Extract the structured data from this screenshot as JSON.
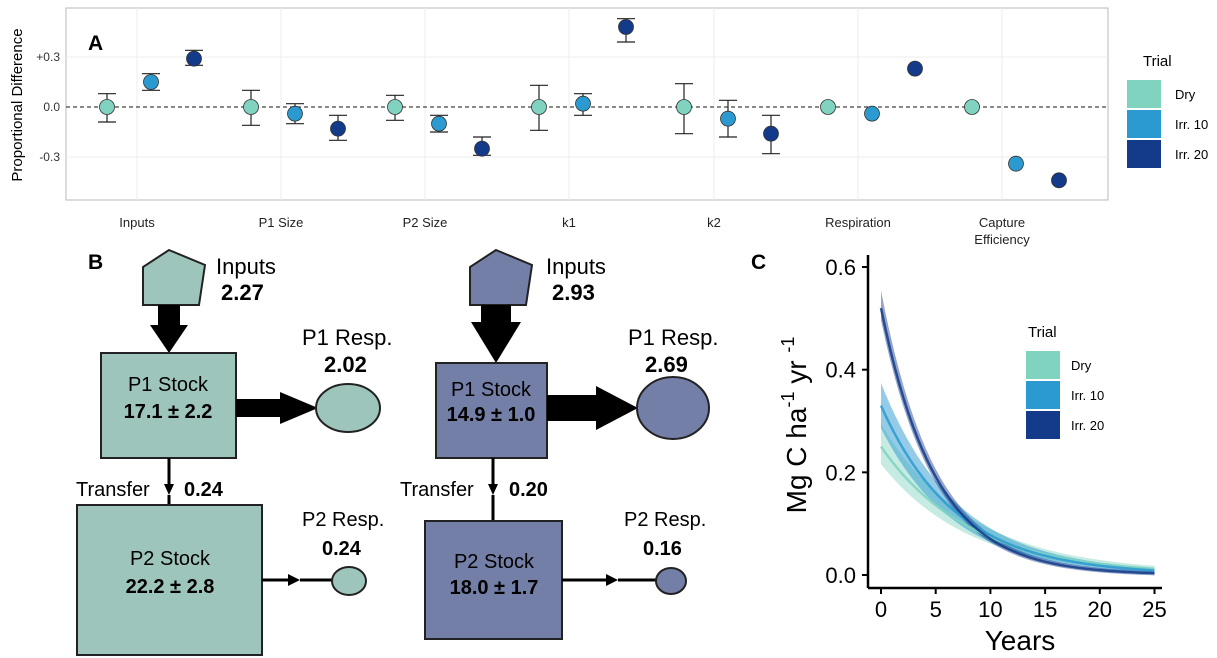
{
  "panels": {
    "A": "A",
    "B": "B",
    "C": "C"
  },
  "colors": {
    "dry": "#7fd3bf",
    "irr10": "#2a9ad0",
    "irr20": "#143a8a",
    "modelDry": "#9ec5bc",
    "modelIrr20": "#747fa8"
  },
  "chart_data": [
    {
      "type": "scatter",
      "panel": "A",
      "ylabel": "Proportional Difference",
      "categories": [
        "Inputs",
        "P1 Size",
        "P2 Size",
        "k1",
        "k2",
        "Respiration",
        "Capture Efficiency"
      ],
      "yticks": [
        {
          "value": 0.3,
          "label": "+0.3"
        },
        {
          "value": 0.0,
          "label": "0.0"
        },
        {
          "value": -0.3,
          "label": "-0.3"
        }
      ],
      "ylim": [
        -0.6,
        0.6
      ],
      "reference_line": 0,
      "legend": {
        "title": "Trial",
        "position": "right",
        "entries": [
          "Dry",
          "Irr. 10",
          "Irr. 20"
        ]
      },
      "series": [
        {
          "name": "Dry",
          "color": "#7fd3bf",
          "values": [
            0.0,
            0.0,
            0.0,
            0.0,
            0.0,
            0.0,
            0.0
          ],
          "err_low": [
            -0.09,
            -0.11,
            -0.08,
            -0.14,
            -0.16,
            null,
            null
          ],
          "err_high": [
            0.08,
            0.1,
            0.07,
            0.13,
            0.14,
            null,
            null
          ]
        },
        {
          "name": "Irr. 10",
          "color": "#2a9ad0",
          "values": [
            0.15,
            -0.04,
            -0.1,
            0.02,
            -0.07,
            -0.04,
            -0.34
          ],
          "err_low": [
            0.1,
            -0.1,
            -0.15,
            -0.05,
            -0.18,
            null,
            null
          ],
          "err_high": [
            0.2,
            0.02,
            -0.05,
            0.08,
            0.04,
            null,
            null
          ]
        },
        {
          "name": "Irr. 20",
          "color": "#143a8a",
          "values": [
            0.29,
            -0.13,
            -0.25,
            0.48,
            -0.16,
            0.23,
            -0.44
          ],
          "err_low": [
            0.25,
            -0.2,
            -0.29,
            0.39,
            -0.28,
            null,
            null
          ],
          "err_high": [
            0.34,
            -0.05,
            -0.18,
            0.53,
            -0.05,
            null,
            null
          ]
        }
      ]
    },
    {
      "type": "line",
      "panel": "C",
      "xlabel": "Years",
      "ylabel_parts": [
        "Mg C ha",
        "-1",
        " yr ",
        "-1"
      ],
      "xticks": [
        0,
        5,
        10,
        15,
        20,
        25
      ],
      "yticks": [
        0.0,
        0.2,
        0.4,
        0.6
      ],
      "ytick_labels": [
        "0.0",
        "0.2",
        "0.4",
        "0.6"
      ],
      "xlim": [
        -1,
        25.5
      ],
      "ylim": [
        -0.02,
        0.63
      ],
      "legend": {
        "title": "Trial",
        "position": "top-right",
        "entries": [
          "Dry",
          "Irr. 10",
          "Irr. 20"
        ]
      },
      "series": [
        {
          "name": "Dry",
          "color": "#7fd3bf",
          "y0": 0.25,
          "rate": 0.122,
          "band": [
            0.22,
            0.29
          ]
        },
        {
          "name": "Irr. 10",
          "color": "#2a9ad0",
          "y0": 0.33,
          "rate": 0.145,
          "band": [
            0.29,
            0.37
          ]
        },
        {
          "name": "Irr. 20",
          "color": "#143a8a",
          "y0": 0.52,
          "rate": 0.2,
          "band": [
            0.5,
            0.55
          ]
        }
      ]
    }
  ],
  "diagrams": [
    {
      "inputs_label": "Inputs",
      "inputs_value": "2.27",
      "p1_title": "P1 Stock",
      "p1_value": "17.1 ± 2.2",
      "p1_resp_label": "P1 Resp.",
      "p1_resp_value": "2.02",
      "transfer_label": "Transfer",
      "transfer_value": "0.24",
      "p2_title": "P2 Stock",
      "p2_value": "22.2 ± 2.8",
      "p2_resp_label": "P2 Resp.",
      "p2_resp_value": "0.24"
    },
    {
      "inputs_label": "Inputs",
      "inputs_value": "2.93",
      "p1_title": "P1 Stock",
      "p1_value": "14.9 ± 1.0",
      "p1_resp_label": "P1 Resp.",
      "p1_resp_value": "2.69",
      "transfer_label": "Transfer",
      "transfer_value": "0.20",
      "p2_title": "P2 Stock",
      "p2_value": "18.0 ± 1.7",
      "p2_resp_label": "P2 Resp.",
      "p2_resp_value": "0.16"
    }
  ]
}
